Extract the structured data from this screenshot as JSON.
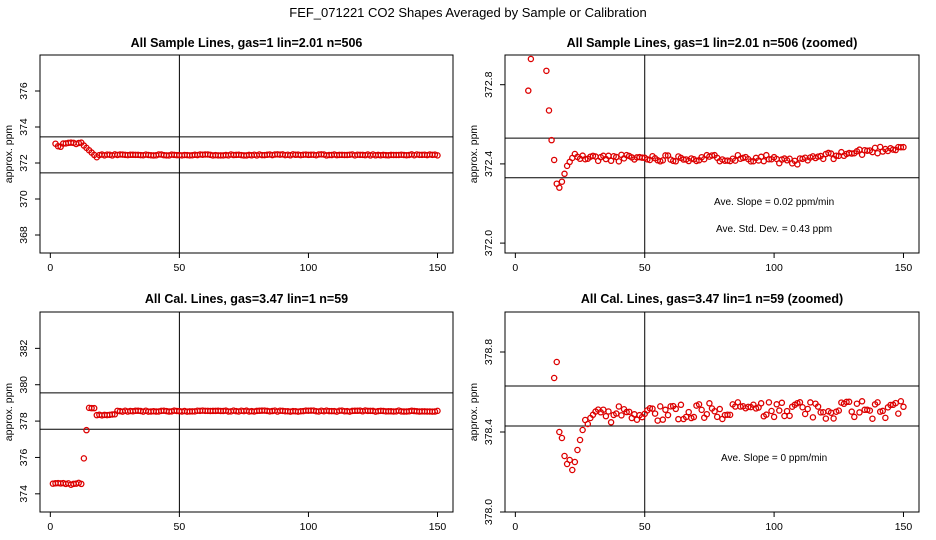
{
  "title": "FEF_071221  CO2 Shapes Averaged by Sample or Calibration",
  "colors": {
    "points": "#dd0000",
    "axes": "#000000",
    "background": "#ffffff"
  },
  "chart_data": [
    {
      "type": "scatter",
      "title": "All Sample Lines, gas=1 lin=2.01 n=506",
      "xlabel": "",
      "ylabel": "approx. ppm",
      "xlim": [
        -4,
        156
      ],
      "ylim": [
        367,
        378
      ],
      "xticks": [
        0,
        50,
        100,
        150
      ],
      "yticks": [
        368,
        370,
        372,
        374,
        376
      ],
      "hlines": [
        373.45,
        371.45
      ],
      "vline": 50,
      "annotations": [],
      "series": [
        {
          "name": "sample",
          "kind": "sample_full"
        }
      ]
    },
    {
      "type": "scatter",
      "title": "All Sample Lines, gas=1 lin=2.01 n=506 (zoomed)",
      "xlabel": "",
      "ylabel": "approx. ppm",
      "xlim": [
        -4,
        156
      ],
      "ylim": [
        371.95,
        372.95
      ],
      "xticks": [
        0,
        50,
        100,
        150
      ],
      "yticks": [
        372.0,
        372.4,
        372.8
      ],
      "hlines": [
        372.53,
        372.33
      ],
      "vline": 50,
      "annotations": [
        "Ave. Slope =  0.02  ppm/min",
        "Ave. Std. Dev. =  0.43  ppm"
      ],
      "series": [
        {
          "name": "sample",
          "kind": "sample_zoom"
        }
      ]
    },
    {
      "type": "scatter",
      "title": "All Cal. Lines, gas=3.47 lin=1 n=59",
      "xlabel": "",
      "ylabel": "approx. ppm",
      "xlim": [
        -4,
        156
      ],
      "ylim": [
        373,
        384
      ],
      "xticks": [
        0,
        50,
        100,
        150
      ],
      "yticks": [
        374,
        376,
        378,
        380,
        382
      ],
      "hlines": [
        379.55,
        377.55
      ],
      "vline": 50,
      "annotations": [],
      "series": [
        {
          "name": "calibration",
          "kind": "cal_full"
        }
      ]
    },
    {
      "type": "scatter",
      "title": "All Cal. Lines, gas=3.47 lin=1 n=59 (zoomed)",
      "xlabel": "",
      "ylabel": "approx. ppm",
      "xlim": [
        -4,
        156
      ],
      "ylim": [
        378.0,
        379.0
      ],
      "xticks": [
        0,
        50,
        100,
        150
      ],
      "yticks": [
        378.0,
        378.4,
        378.8
      ],
      "hlines": [
        378.63,
        378.43
      ],
      "vline": 50,
      "annotations": [
        "Ave. Slope =  0  ppm/min"
      ],
      "series": [
        {
          "name": "calibration",
          "kind": "cal_zoom"
        }
      ]
    }
  ]
}
